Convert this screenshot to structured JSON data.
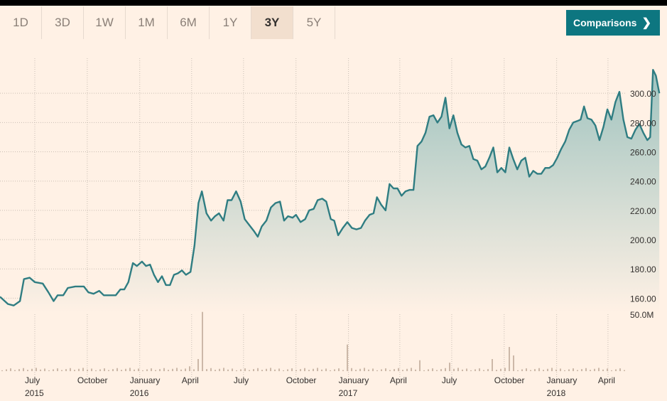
{
  "tabs": [
    {
      "label": "1D",
      "active": false
    },
    {
      "label": "3D",
      "active": false
    },
    {
      "label": "1W",
      "active": false
    },
    {
      "label": "1M",
      "active": false
    },
    {
      "label": "6M",
      "active": false
    },
    {
      "label": "1Y",
      "active": false
    },
    {
      "label": "3Y",
      "active": true
    },
    {
      "label": "5Y",
      "active": false
    }
  ],
  "comparisons": {
    "label": "Comparisons",
    "icon": "chevron-right-icon"
  },
  "colors": {
    "line": "#2f7d82",
    "fill_top": "#9fc3bf",
    "fill_bottom": "#fff1e5",
    "volume": "#ccb8a8",
    "grid": "#c9beb4",
    "button": "#0d7680"
  },
  "chart_data": {
    "type": "area",
    "x_start": "2015-05-01",
    "x_end": "2018-05-01",
    "ylim": [
      150,
      320
    ],
    "y_ticks": [
      "160.00",
      "180.00",
      "200.00",
      "220.00",
      "240.00",
      "260.00",
      "280.00",
      "300.00"
    ],
    "volume_tick": "50.0M",
    "x_labels": [
      {
        "month": "July",
        "year": "2015"
      },
      {
        "month": "October",
        "year": ""
      },
      {
        "month": "January",
        "year": "2016"
      },
      {
        "month": "April",
        "year": ""
      },
      {
        "month": "July",
        "year": ""
      },
      {
        "month": "October",
        "year": ""
      },
      {
        "month": "January",
        "year": "2017"
      },
      {
        "month": "April",
        "year": ""
      },
      {
        "month": "July",
        "year": ""
      },
      {
        "month": "October",
        "year": ""
      },
      {
        "month": "January",
        "year": "2018"
      },
      {
        "month": "April",
        "year": ""
      }
    ],
    "price": [
      [
        "2015-05-01",
        161
      ],
      [
        "2015-05-15",
        156
      ],
      [
        "2015-05-25",
        155
      ],
      [
        "2015-06-05",
        158
      ],
      [
        "2015-06-12",
        173
      ],
      [
        "2015-06-22",
        174
      ],
      [
        "2015-07-01",
        171
      ],
      [
        "2015-07-15",
        170
      ],
      [
        "2015-07-25",
        164
      ],
      [
        "2015-08-03",
        158
      ],
      [
        "2015-08-10",
        162
      ],
      [
        "2015-08-20",
        162
      ],
      [
        "2015-08-28",
        167
      ],
      [
        "2015-09-10",
        168
      ],
      [
        "2015-09-25",
        168
      ],
      [
        "2015-10-03",
        164
      ],
      [
        "2015-10-12",
        163
      ],
      [
        "2015-10-22",
        165
      ],
      [
        "2015-10-30",
        162
      ],
      [
        "2015-11-10",
        162
      ],
      [
        "2015-11-20",
        162
      ],
      [
        "2015-11-28",
        166
      ],
      [
        "2015-12-05",
        166
      ],
      [
        "2015-12-12",
        171
      ],
      [
        "2015-12-20",
        184
      ],
      [
        "2015-12-27",
        182
      ],
      [
        "2016-01-05",
        185
      ],
      [
        "2016-01-12",
        182
      ],
      [
        "2016-01-19",
        183
      ],
      [
        "2016-01-26",
        176
      ],
      [
        "2016-02-02",
        171
      ],
      [
        "2016-02-09",
        175
      ],
      [
        "2016-02-16",
        169
      ],
      [
        "2016-02-23",
        169
      ],
      [
        "2016-03-01",
        176
      ],
      [
        "2016-03-08",
        177
      ],
      [
        "2016-03-15",
        179
      ],
      [
        "2016-03-22",
        176
      ],
      [
        "2016-03-30",
        178
      ],
      [
        "2016-04-06",
        196
      ],
      [
        "2016-04-13",
        225
      ],
      [
        "2016-04-19",
        233
      ],
      [
        "2016-04-27",
        218
      ],
      [
        "2016-05-05",
        213
      ],
      [
        "2016-05-12",
        216
      ],
      [
        "2016-05-19",
        218
      ],
      [
        "2016-05-27",
        213
      ],
      [
        "2016-06-03",
        227
      ],
      [
        "2016-06-10",
        227
      ],
      [
        "2016-06-18",
        233
      ],
      [
        "2016-06-26",
        226
      ],
      [
        "2016-07-03",
        214
      ],
      [
        "2016-07-11",
        210
      ],
      [
        "2016-07-19",
        206
      ],
      [
        "2016-07-26",
        202
      ],
      [
        "2016-08-02",
        209
      ],
      [
        "2016-08-10",
        213
      ],
      [
        "2016-08-18",
        222
      ],
      [
        "2016-08-26",
        225
      ],
      [
        "2016-09-03",
        226
      ],
      [
        "2016-09-10",
        213
      ],
      [
        "2016-09-17",
        216
      ],
      [
        "2016-09-25",
        215
      ],
      [
        "2016-10-01",
        217
      ],
      [
        "2016-10-09",
        212
      ],
      [
        "2016-10-17",
        214
      ],
      [
        "2016-10-24",
        220
      ],
      [
        "2016-11-01",
        221
      ],
      [
        "2016-11-08",
        227
      ],
      [
        "2016-11-16",
        228
      ],
      [
        "2016-11-23",
        226
      ],
      [
        "2016-12-01",
        214
      ],
      [
        "2016-12-07",
        213
      ],
      [
        "2016-12-14",
        203
      ],
      [
        "2016-12-22",
        208
      ],
      [
        "2016-12-30",
        212
      ],
      [
        "2017-01-07",
        208
      ],
      [
        "2017-01-15",
        207
      ],
      [
        "2017-01-23",
        208
      ],
      [
        "2017-01-30",
        213
      ],
      [
        "2017-02-07",
        217
      ],
      [
        "2017-02-14",
        218
      ],
      [
        "2017-02-20",
        229
      ],
      [
        "2017-02-27",
        224
      ],
      [
        "2017-03-07",
        220
      ],
      [
        "2017-03-14",
        238
      ],
      [
        "2017-03-21",
        235
      ],
      [
        "2017-03-28",
        235
      ],
      [
        "2017-04-04",
        230
      ],
      [
        "2017-04-11",
        233
      ],
      [
        "2017-04-18",
        234
      ],
      [
        "2017-04-25",
        234
      ],
      [
        "2017-05-02",
        264
      ],
      [
        "2017-05-09",
        267
      ],
      [
        "2017-05-16",
        273
      ],
      [
        "2017-05-23",
        284
      ],
      [
        "2017-05-30",
        285
      ],
      [
        "2017-06-06",
        280
      ],
      [
        "2017-06-13",
        284
      ],
      [
        "2017-06-20",
        297
      ],
      [
        "2017-06-27",
        276
      ],
      [
        "2017-07-04",
        285
      ],
      [
        "2017-07-11",
        273
      ],
      [
        "2017-07-18",
        265
      ],
      [
        "2017-07-25",
        263
      ],
      [
        "2017-08-01",
        264
      ],
      [
        "2017-08-08",
        255
      ],
      [
        "2017-08-15",
        254
      ],
      [
        "2017-08-22",
        248
      ],
      [
        "2017-08-29",
        250
      ],
      [
        "2017-09-05",
        256
      ],
      [
        "2017-09-12",
        263
      ],
      [
        "2017-09-19",
        246
      ],
      [
        "2017-09-26",
        249
      ],
      [
        "2017-10-03",
        246
      ],
      [
        "2017-10-10",
        263
      ],
      [
        "2017-10-17",
        255
      ],
      [
        "2017-10-24",
        248
      ],
      [
        "2017-10-31",
        254
      ],
      [
        "2017-11-07",
        256
      ],
      [
        "2017-11-14",
        243
      ],
      [
        "2017-11-21",
        247
      ],
      [
        "2017-11-28",
        245
      ],
      [
        "2017-12-05",
        245
      ],
      [
        "2017-12-12",
        249
      ],
      [
        "2017-12-19",
        249
      ],
      [
        "2017-12-26",
        251
      ],
      [
        "2018-01-02",
        256
      ],
      [
        "2018-01-09",
        262
      ],
      [
        "2018-01-16",
        267
      ],
      [
        "2018-01-23",
        275
      ],
      [
        "2018-01-30",
        280
      ],
      [
        "2018-02-06",
        281
      ],
      [
        "2018-02-12",
        282
      ],
      [
        "2018-02-18",
        291
      ],
      [
        "2018-02-24",
        283
      ],
      [
        "2018-03-03",
        282
      ],
      [
        "2018-03-10",
        278
      ],
      [
        "2018-03-17",
        268
      ],
      [
        "2018-03-24",
        277
      ],
      [
        "2018-03-31",
        289
      ],
      [
        "2018-04-07",
        282
      ],
      [
        "2018-04-14",
        294
      ],
      [
        "2018-04-21",
        301
      ],
      [
        "2018-04-28",
        282
      ],
      [
        "2018-05-05",
        270
      ],
      [
        "2018-05-12",
        269
      ],
      [
        "2018-05-19",
        275
      ],
      [
        "2018-05-26",
        279
      ],
      [
        "2018-06-02",
        273
      ],
      [
        "2018-06-09",
        268
      ],
      [
        "2018-06-14",
        270
      ],
      [
        "2018-06-19",
        316
      ],
      [
        "2018-06-24",
        312
      ],
      [
        "2018-06-30",
        300
      ]
    ],
    "volume_ylim": [
      0,
      50
    ],
    "volume_events": [
      [
        "2016-03-22",
        4
      ],
      [
        "2016-04-06",
        10
      ],
      [
        "2016-04-13",
        6
      ],
      [
        "2016-04-19",
        49
      ],
      [
        "2016-12-30",
        22
      ],
      [
        "2017-05-02",
        9
      ],
      [
        "2017-06-20",
        7
      ],
      [
        "2017-09-05",
        10
      ],
      [
        "2017-10-03",
        20
      ],
      [
        "2017-10-17",
        13
      ],
      [
        "2018-05-26",
        4
      ],
      [
        "2018-06-19",
        12
      ],
      [
        "2018-06-24",
        7
      ]
    ]
  }
}
